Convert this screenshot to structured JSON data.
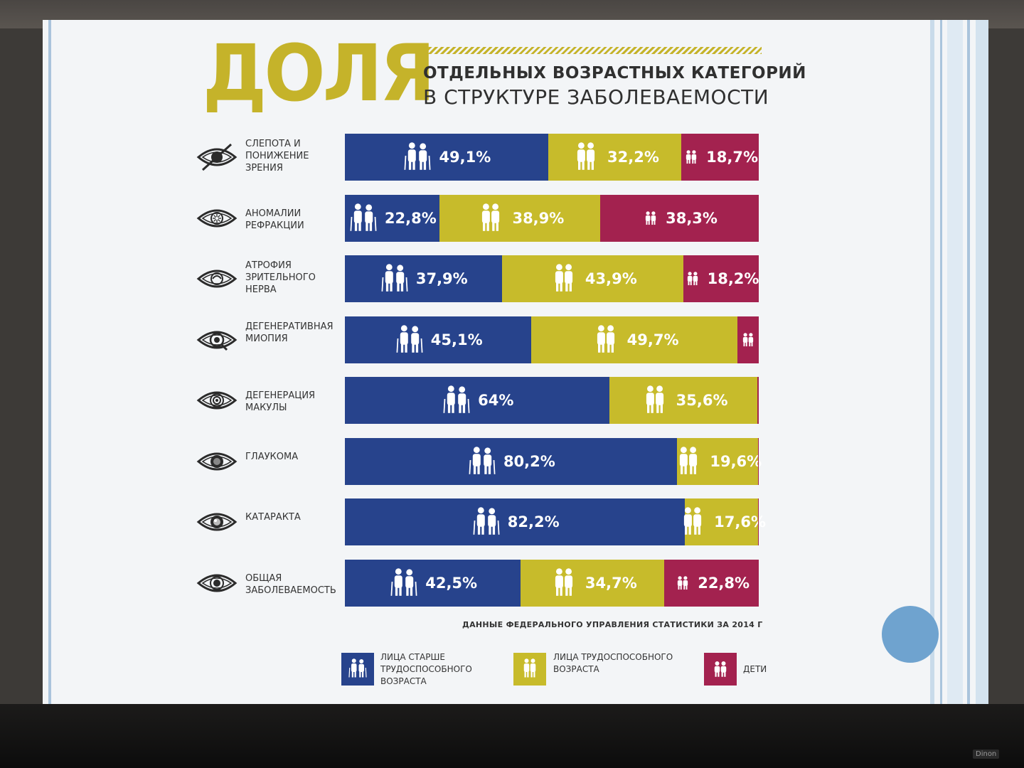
{
  "title": {
    "big": "ДОЛЯ",
    "line1": "ОТДЕЛЬНЫХ ВОЗРАСТНЫХ КАТЕГОРИЙ",
    "line2": "В СТРУКТУРЕ ЗАБОЛЕВАЕМОСТИ"
  },
  "source": "ДАННЫЕ ФЕДЕРАЛЬНОГО УПРАВЛЕНИЯ СТАТИСТИКИ ЗА 2014 Г",
  "colors": {
    "elderly": "#27438c",
    "working": "#c7bb2b",
    "children": "#a3224f",
    "title_accent": "#c5b32a"
  },
  "legend": [
    {
      "key": "elderly",
      "label": "ЛИЦА СТАРШЕ ТРУДОСПОСОБНОГО ВОЗРАСТА",
      "icon": "elderly-couple-icon"
    },
    {
      "key": "working",
      "label": "ЛИЦА ТРУДОСПОСОБНОГО ВОЗРАСТА",
      "icon": "adult-couple-icon"
    },
    {
      "key": "children",
      "label": "ДЕТИ",
      "icon": "children-icon"
    }
  ],
  "chart_data": {
    "type": "bar",
    "stacked": true,
    "orientation": "horizontal",
    "categories": [
      "СЛЕПОТА И ПОНИЖЕНИЕ ЗРЕНИЯ",
      "АНОМАЛИИ РЕФРАКЦИИ",
      "АТРОФИЯ ЗРИТЕЛЬНОГО НЕРВА",
      "ДЕГЕНЕРАТИВНАЯ МИОПИЯ",
      "ДЕГЕНЕРАЦИЯ МАКУЛЫ",
      "ГЛАУКОМА",
      "КАТАРАКТА",
      "ОБЩАЯ ЗАБОЛЕВАЕМОСТЬ"
    ],
    "category_icons": [
      "crossed-eye-icon",
      "refraction-eye-icon",
      "optic-atrophy-eye-icon",
      "myopia-eye-icon",
      "macula-eye-icon",
      "glaucoma-eye-icon",
      "cataract-eye-icon",
      "eye-icon"
    ],
    "series": [
      {
        "name": "ЛИЦА СТАРШЕ ТРУДОСПОСОБНОГО ВОЗРАСТА",
        "key": "elderly",
        "values": [
          49.1,
          22.8,
          37.9,
          45.1,
          64,
          80.2,
          82.2,
          42.5
        ],
        "labels": [
          "49,1%",
          "22,8%",
          "37,9%",
          "45,1%",
          "64%",
          "80,2%",
          "82,2%",
          "42,5%"
        ]
      },
      {
        "name": "ЛИЦА ТРУДОСПОСОБНОГО ВОЗРАСТА",
        "key": "working",
        "values": [
          32.2,
          38.9,
          43.9,
          49.7,
          35.6,
          19.6,
          17.6,
          34.7
        ],
        "labels": [
          "32,2%",
          "38,9%",
          "43,9%",
          "49,7%",
          "35,6%",
          "19,6%",
          "17,6%",
          "34,7%"
        ]
      },
      {
        "name": "ДЕТИ",
        "key": "children",
        "values": [
          18.7,
          38.3,
          18.2,
          5.2,
          0.4,
          0.2,
          0.2,
          22.8
        ],
        "labels": [
          "18,7%",
          "38,3%",
          "18,2%",
          "",
          "",
          "",
          "",
          "22,8%"
        ]
      }
    ],
    "xlim": [
      0,
      100
    ],
    "legend_position": "bottom"
  }
}
